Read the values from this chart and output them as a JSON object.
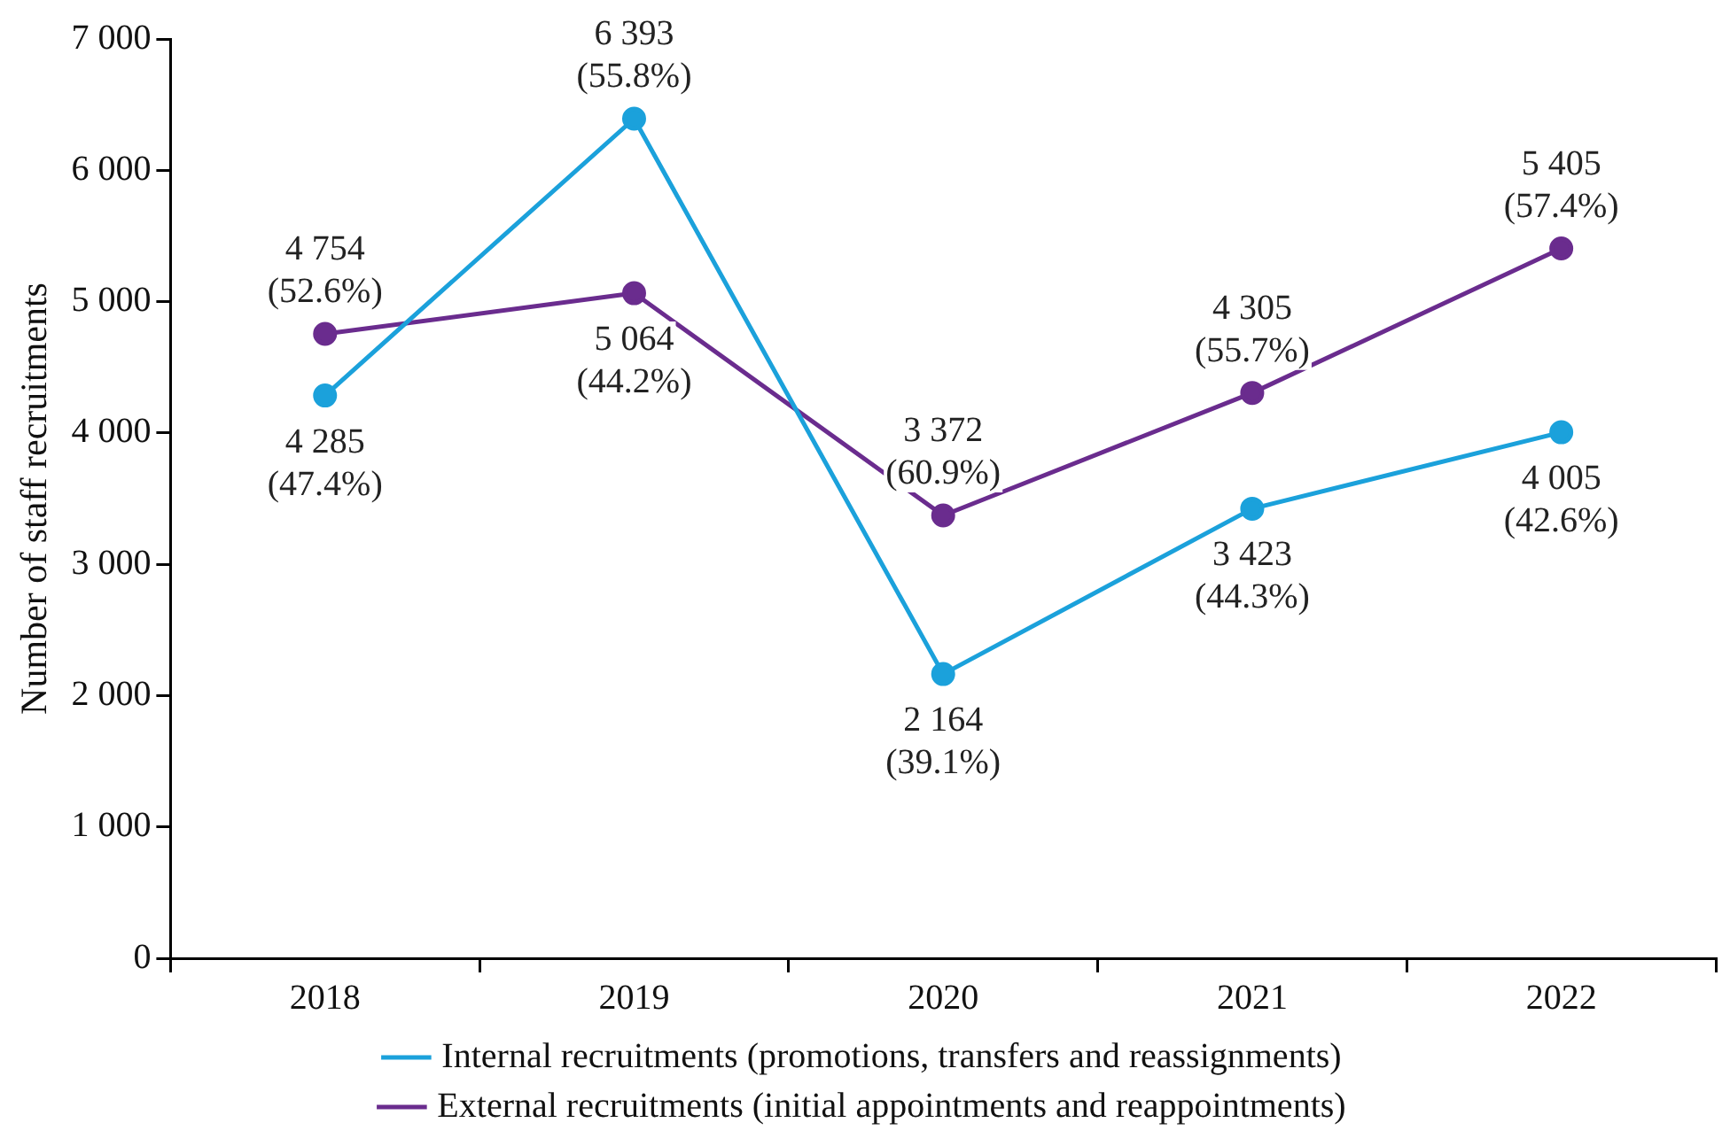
{
  "chart_data": {
    "type": "line",
    "ylabel": "Number of staff recruitments",
    "categories": [
      "2018",
      "2019",
      "2020",
      "2021",
      "2022"
    ],
    "series": [
      {
        "name": "Internal recruitments (promotions, transfers and reassignments)",
        "color": "#1ba1db",
        "values": [
          4285,
          6393,
          2164,
          3423,
          4005
        ],
        "value_labels": [
          "4 285\n(47.4%)",
          "6 393\n(55.8%)",
          "2 164\n(39.1%)",
          "3 423\n(44.3%)",
          "4 005\n(42.6%)"
        ]
      },
      {
        "name": "External recruitments (initial appointments and reappointments)",
        "color": "#6a2c8e",
        "values": [
          4754,
          5064,
          3372,
          4305,
          5405
        ],
        "value_labels": [
          "4 754\n(52.6%)",
          "5 064\n(44.2%)",
          "3 372\n(60.9%)",
          "4 305\n(55.7%)",
          "5 405\n(57.4%)"
        ]
      }
    ],
    "ylim": [
      0,
      7000
    ],
    "yticks": [
      {
        "value": 0,
        "label": "0"
      },
      {
        "value": 1000,
        "label": "1 000"
      },
      {
        "value": 2000,
        "label": "2 000"
      },
      {
        "value": 3000,
        "label": "3 000"
      },
      {
        "value": 4000,
        "label": "4 000"
      },
      {
        "value": 5000,
        "label": "5 000"
      },
      {
        "value": 6000,
        "label": "6 000"
      },
      {
        "value": 7000,
        "label": "7 000"
      }
    ],
    "grid": false,
    "legend": "bottom",
    "marker": "circle",
    "line_style": "solid"
  }
}
